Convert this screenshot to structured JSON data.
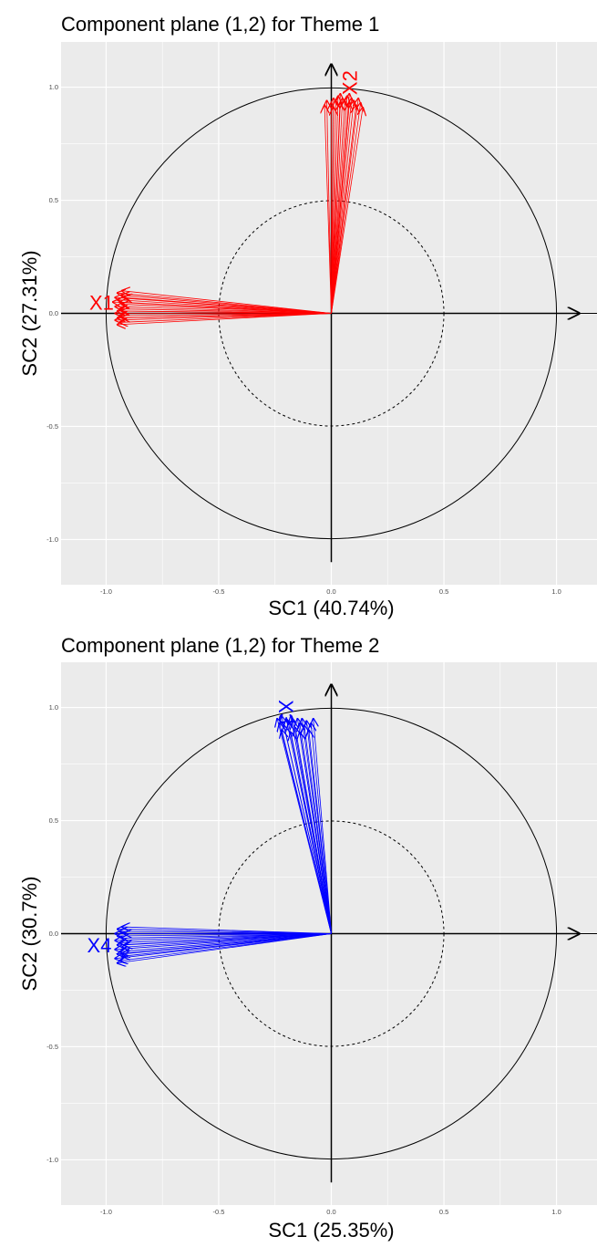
{
  "chart_data": [
    {
      "type": "scatter",
      "title": "Component plane (1,2) for Theme 1",
      "xlabel": "SC1 (40.74%)",
      "ylabel": "SC2 (27.31%)",
      "xlim": [
        -1.2,
        1.2
      ],
      "ylim": [
        -1.2,
        1.2
      ],
      "x_ticks": [
        "-1.0",
        "-0.5",
        "0.0",
        "0.5",
        "1.0"
      ],
      "y_ticks": [
        "-1.0",
        "-0.5",
        "0.0",
        "0.5",
        "1.0"
      ],
      "reference_circles": [
        1.0,
        0.5
      ],
      "grid": true,
      "color": "#ff0000",
      "series": [
        {
          "name": "X1",
          "label_at": [
            -1.02,
            0.04
          ],
          "label_rotation": 0,
          "points": [
            [
              -0.93,
              0.1
            ],
            [
              -0.95,
              0.09
            ],
            [
              -0.93,
              0.08
            ],
            [
              -0.96,
              0.07
            ],
            [
              -0.92,
              0.07
            ],
            [
              -0.95,
              0.06
            ],
            [
              -0.94,
              0.05
            ],
            [
              -0.97,
              0.05
            ],
            [
              -0.93,
              0.04
            ],
            [
              -0.96,
              0.03
            ],
            [
              -0.94,
              0.02
            ],
            [
              -0.95,
              0.01
            ],
            [
              -0.93,
              0.01
            ],
            [
              -0.96,
              0.0
            ],
            [
              -0.94,
              -0.01
            ],
            [
              -0.95,
              -0.02
            ],
            [
              -0.93,
              -0.02
            ],
            [
              -0.96,
              -0.03
            ],
            [
              -0.94,
              -0.04
            ],
            [
              -0.95,
              -0.05
            ]
          ]
        },
        {
          "name": "X2",
          "label_at": [
            0.09,
            1.02
          ],
          "label_rotation": -90,
          "points": [
            [
              -0.03,
              0.92
            ],
            [
              -0.02,
              0.94
            ],
            [
              0.0,
              0.93
            ],
            [
              0.01,
              0.95
            ],
            [
              0.02,
              0.94
            ],
            [
              0.03,
              0.96
            ],
            [
              0.04,
              0.93
            ],
            [
              0.05,
              0.95
            ],
            [
              0.06,
              0.94
            ],
            [
              0.07,
              0.96
            ],
            [
              0.08,
              0.93
            ],
            [
              0.09,
              0.95
            ],
            [
              0.1,
              0.94
            ],
            [
              0.11,
              0.92
            ],
            [
              0.12,
              0.95
            ],
            [
              0.13,
              0.93
            ],
            [
              0.14,
              0.91
            ],
            [
              0.04,
              0.97
            ],
            [
              0.08,
              0.97
            ],
            [
              0.01,
              0.91
            ]
          ]
        }
      ]
    },
    {
      "type": "scatter",
      "title": "Component plane (1,2) for Theme 2",
      "xlabel": "SC1 (25.35%)",
      "ylabel": "SC2 (30.7%)",
      "xlim": [
        -1.2,
        1.2
      ],
      "ylim": [
        -1.2,
        1.2
      ],
      "x_ticks": [
        "-1.0",
        "-0.5",
        "0.0",
        "0.5",
        "1.0"
      ],
      "y_ticks": [
        "-1.0",
        "-0.5",
        "0.0",
        "0.5",
        "1.0"
      ],
      "reference_circles": [
        1.0,
        0.5
      ],
      "grid": true,
      "color": "#0000ff",
      "series": [
        {
          "name": "X3",
          "label_at": [
            -0.21,
            0.98
          ],
          "label_rotation": 90,
          "points": [
            [
              -0.24,
              0.95
            ],
            [
              -0.23,
              0.93
            ],
            [
              -0.22,
              0.96
            ],
            [
              -0.21,
              0.92
            ],
            [
              -0.2,
              0.95
            ],
            [
              -0.19,
              0.93
            ],
            [
              -0.18,
              0.96
            ],
            [
              -0.17,
              0.94
            ],
            [
              -0.16,
              0.91
            ],
            [
              -0.15,
              0.95
            ],
            [
              -0.14,
              0.93
            ],
            [
              -0.13,
              0.95
            ],
            [
              -0.12,
              0.92
            ],
            [
              -0.11,
              0.94
            ],
            [
              -0.1,
              0.9
            ],
            [
              -0.09,
              0.93
            ],
            [
              -0.08,
              0.95
            ],
            [
              -0.22,
              0.9
            ],
            [
              -0.18,
              0.89
            ],
            [
              -0.14,
              0.89
            ]
          ]
        },
        {
          "name": "X4",
          "label_at": [
            -1.03,
            -0.06
          ],
          "label_rotation": 0,
          "points": [
            [
              -0.93,
              0.03
            ],
            [
              -0.95,
              0.02
            ],
            [
              -0.94,
              0.01
            ],
            [
              -0.96,
              0.0
            ],
            [
              -0.92,
              0.0
            ],
            [
              -0.95,
              -0.01
            ],
            [
              -0.93,
              -0.02
            ],
            [
              -0.96,
              -0.03
            ],
            [
              -0.94,
              -0.04
            ],
            [
              -0.95,
              -0.05
            ],
            [
              -0.93,
              -0.06
            ],
            [
              -0.96,
              -0.07
            ],
            [
              -0.94,
              -0.08
            ],
            [
              -0.95,
              -0.09
            ],
            [
              -0.93,
              -0.1
            ],
            [
              -0.96,
              -0.11
            ],
            [
              -0.94,
              -0.12
            ],
            [
              -0.95,
              -0.13
            ],
            [
              -0.92,
              -0.05
            ],
            [
              -0.93,
              -0.09
            ]
          ]
        }
      ]
    }
  ]
}
